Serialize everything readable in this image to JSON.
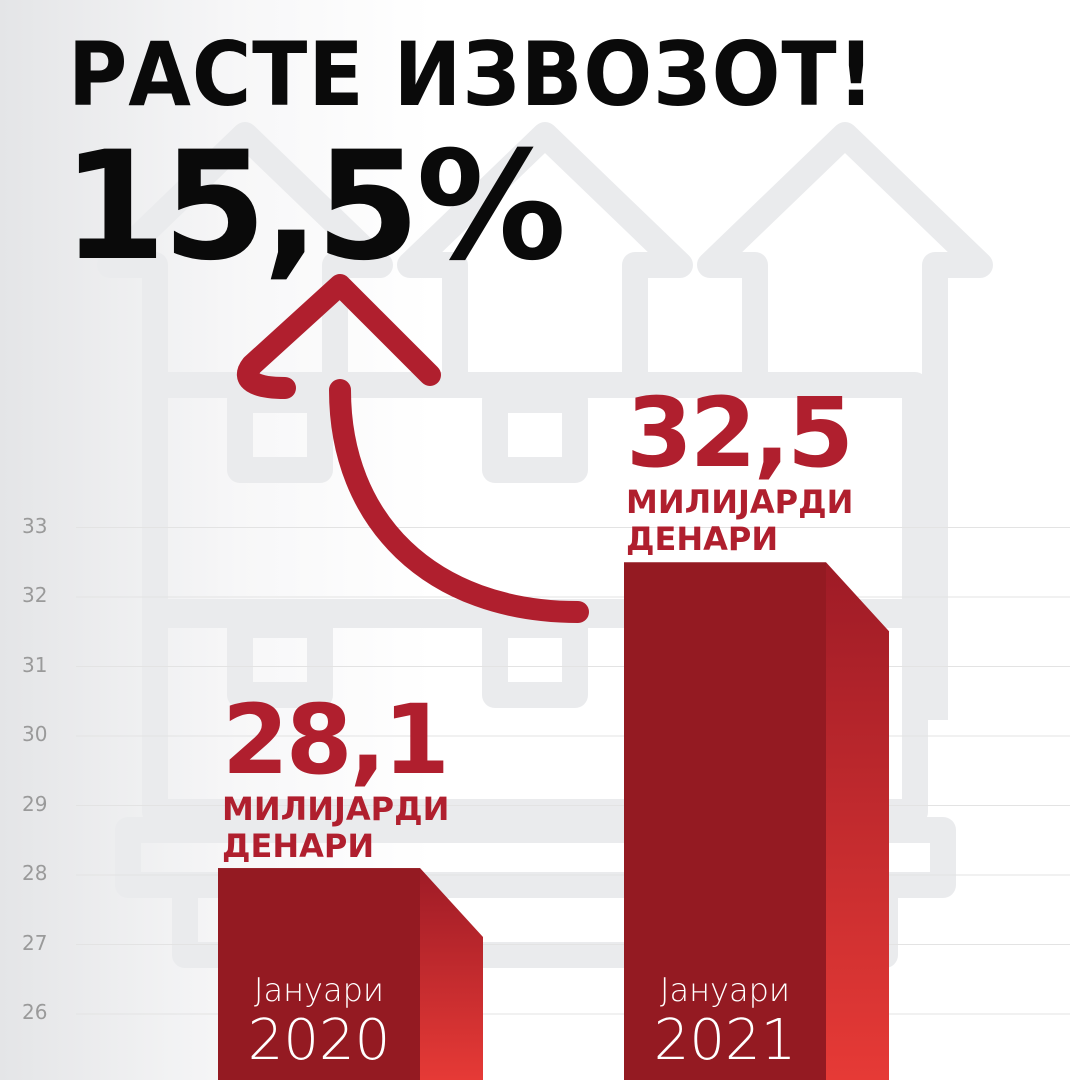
{
  "header": {
    "title": "РАСТЕ ИЗВОЗОТ!",
    "growth": "15,5%"
  },
  "colors": {
    "accent": "#b01f2e",
    "bar_front": "#941a22",
    "bar_side_top": "#9e1b26",
    "bar_side_bottom": "#e63a36",
    "grid": "#e3e3e3",
    "background_icon": "#eaebed"
  },
  "icons": [
    "house-arrow-outline-icon",
    "growth-arrow-icon"
  ],
  "chart_data": {
    "type": "bar",
    "categories": [
      "Јануари 2020",
      "Јануари 2021"
    ],
    "category_parts": [
      {
        "month": "Јануари",
        "year": "2020"
      },
      {
        "month": "Јануари",
        "year": "2021"
      }
    ],
    "values": [
      28.1,
      32.5
    ],
    "data_labels": [
      {
        "value": "28,1",
        "unit1": "МИЛИЈАРДИ",
        "unit2": "ДЕНАРИ"
      },
      {
        "value": "32,5",
        "unit1": "МИЛИЈАРДИ",
        "unit2": "ДЕНАРИ"
      }
    ],
    "yticks": [
      "33",
      "32",
      "31",
      "30",
      "29",
      "28",
      "27",
      "26"
    ],
    "ylim": [
      25.1,
      33.7
    ],
    "grid": true,
    "title": "",
    "xlabel": "",
    "ylabel": ""
  }
}
